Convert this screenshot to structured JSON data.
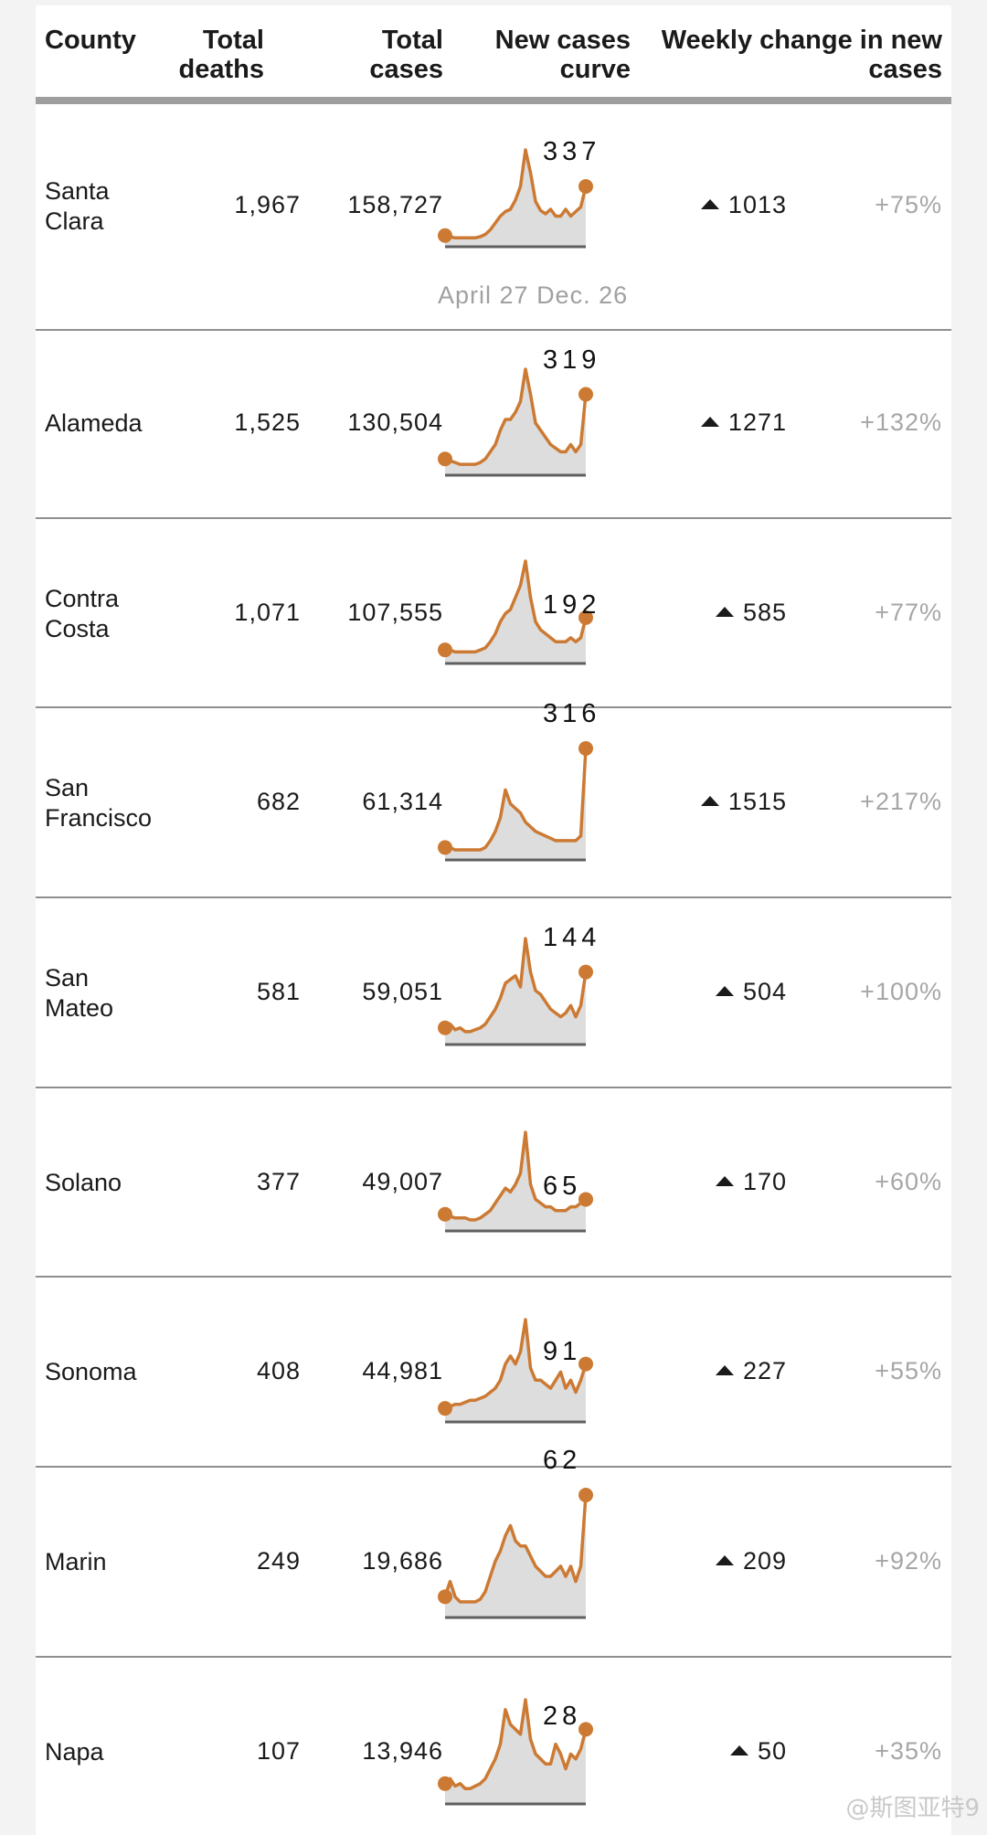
{
  "headers": {
    "county": "County",
    "deaths_1": "Total",
    "deaths_2": "deaths",
    "cases_1": "Total",
    "cases_2": "cases",
    "curve_1": "New cases",
    "curve_2": "curve",
    "weekly_1": "Weekly change in new",
    "weekly_2": "cases"
  },
  "axis_note": {
    "start": "April 27",
    "end": "Dec. 26"
  },
  "watermark": "@斯图亚特9",
  "colors": {
    "curve": "#cc7a33",
    "fill": "#dddddd",
    "baseline": "#5f5f5f",
    "pct": "#a6a6a6"
  },
  "rows": [
    {
      "county_1": "Santa",
      "county_2": "Clara",
      "deaths": "1,967",
      "cases": "158,727",
      "latest": "337",
      "change": "1013",
      "pct": "+75%"
    },
    {
      "county_1": "Alameda",
      "county_2": "",
      "deaths": "1,525",
      "cases": "130,504",
      "latest": "319",
      "change": "1271",
      "pct": "+132%"
    },
    {
      "county_1": "Contra",
      "county_2": "Costa",
      "deaths": "1,071",
      "cases": "107,555",
      "latest": "192",
      "change": "585",
      "pct": "+77%"
    },
    {
      "county_1": "San",
      "county_2": "Francisco",
      "deaths": "682",
      "cases": "61,314",
      "latest": "316",
      "change": "1515",
      "pct": "+217%"
    },
    {
      "county_1": "San",
      "county_2": "Mateo",
      "deaths": "581",
      "cases": "59,051",
      "latest": "144",
      "change": "504",
      "pct": "+100%"
    },
    {
      "county_1": "Solano",
      "county_2": "",
      "deaths": "377",
      "cases": "49,007",
      "latest": "65",
      "change": "170",
      "pct": "+60%"
    },
    {
      "county_1": "Sonoma",
      "county_2": "",
      "deaths": "408",
      "cases": "44,981",
      "latest": "91",
      "change": "227",
      "pct": "+55%"
    },
    {
      "county_1": "Marin",
      "county_2": "",
      "deaths": "249",
      "cases": "19,686",
      "latest": "62",
      "change": "209",
      "pct": "+92%"
    },
    {
      "county_1": "Napa",
      "county_2": "",
      "deaths": "107",
      "cases": "13,946",
      "latest": "28",
      "change": "50",
      "pct": "+35%"
    }
  ],
  "chart_data": [
    {
      "type": "area",
      "title": "Santa Clara",
      "values": [
        5,
        4,
        3,
        3,
        3,
        3,
        3,
        4,
        6,
        10,
        16,
        22,
        26,
        28,
        36,
        48,
        80,
        60,
        35,
        27,
        24,
        28,
        22,
        22,
        28,
        22,
        26,
        30,
        48
      ]
    },
    {
      "type": "area",
      "title": "Alameda",
      "values": [
        6,
        5,
        4,
        3,
        3,
        3,
        3,
        4,
        6,
        10,
        14,
        22,
        28,
        28,
        32,
        38,
        56,
        42,
        26,
        22,
        18,
        14,
        12,
        10,
        10,
        14,
        10,
        14,
        42
      ]
    },
    {
      "type": "area",
      "title": "Contra Costa",
      "values": [
        4,
        4,
        3,
        3,
        3,
        3,
        3,
        4,
        5,
        8,
        12,
        18,
        22,
        24,
        30,
        36,
        48,
        30,
        18,
        14,
        12,
        10,
        8,
        8,
        8,
        10,
        8,
        10,
        20
      ]
    },
    {
      "type": "area",
      "title": "San Francisco",
      "values": [
        3,
        3,
        2,
        2,
        2,
        2,
        2,
        2,
        3,
        6,
        10,
        16,
        28,
        22,
        20,
        18,
        14,
        12,
        10,
        9,
        8,
        7,
        6,
        6,
        6,
        6,
        6,
        8,
        46
      ]
    },
    {
      "type": "area",
      "title": "San Mateo",
      "values": [
        6,
        8,
        5,
        6,
        4,
        4,
        5,
        6,
        8,
        12,
        16,
        22,
        30,
        32,
        34,
        28,
        54,
        36,
        26,
        24,
        20,
        16,
        14,
        12,
        14,
        18,
        12,
        18,
        36
      ]
    },
    {
      "type": "area",
      "title": "Solano",
      "values": [
        6,
        5,
        4,
        4,
        4,
        3,
        3,
        4,
        6,
        8,
        12,
        16,
        20,
        18,
        22,
        28,
        50,
        22,
        14,
        12,
        10,
        10,
        8,
        8,
        8,
        10,
        10,
        12,
        14
      ]
    },
    {
      "type": "area",
      "title": "Sonoma",
      "values": [
        4,
        5,
        6,
        6,
        7,
        8,
        8,
        9,
        10,
        12,
        14,
        18,
        26,
        30,
        26,
        32,
        48,
        24,
        18,
        18,
        16,
        14,
        18,
        22,
        14,
        18,
        12,
        18,
        26
      ]
    },
    {
      "type": "area",
      "title": "Marin",
      "values": [
        6,
        12,
        6,
        4,
        4,
        4,
        4,
        5,
        8,
        14,
        20,
        24,
        30,
        34,
        28,
        26,
        26,
        22,
        18,
        16,
        14,
        14,
        16,
        18,
        14,
        18,
        12,
        18,
        46
      ]
    },
    {
      "type": "area",
      "title": "Napa",
      "values": [
        6,
        8,
        5,
        6,
        4,
        4,
        5,
        6,
        8,
        12,
        16,
        22,
        36,
        30,
        28,
        26,
        40,
        24,
        18,
        16,
        14,
        14,
        22,
        18,
        12,
        18,
        16,
        20,
        28
      ]
    }
  ]
}
